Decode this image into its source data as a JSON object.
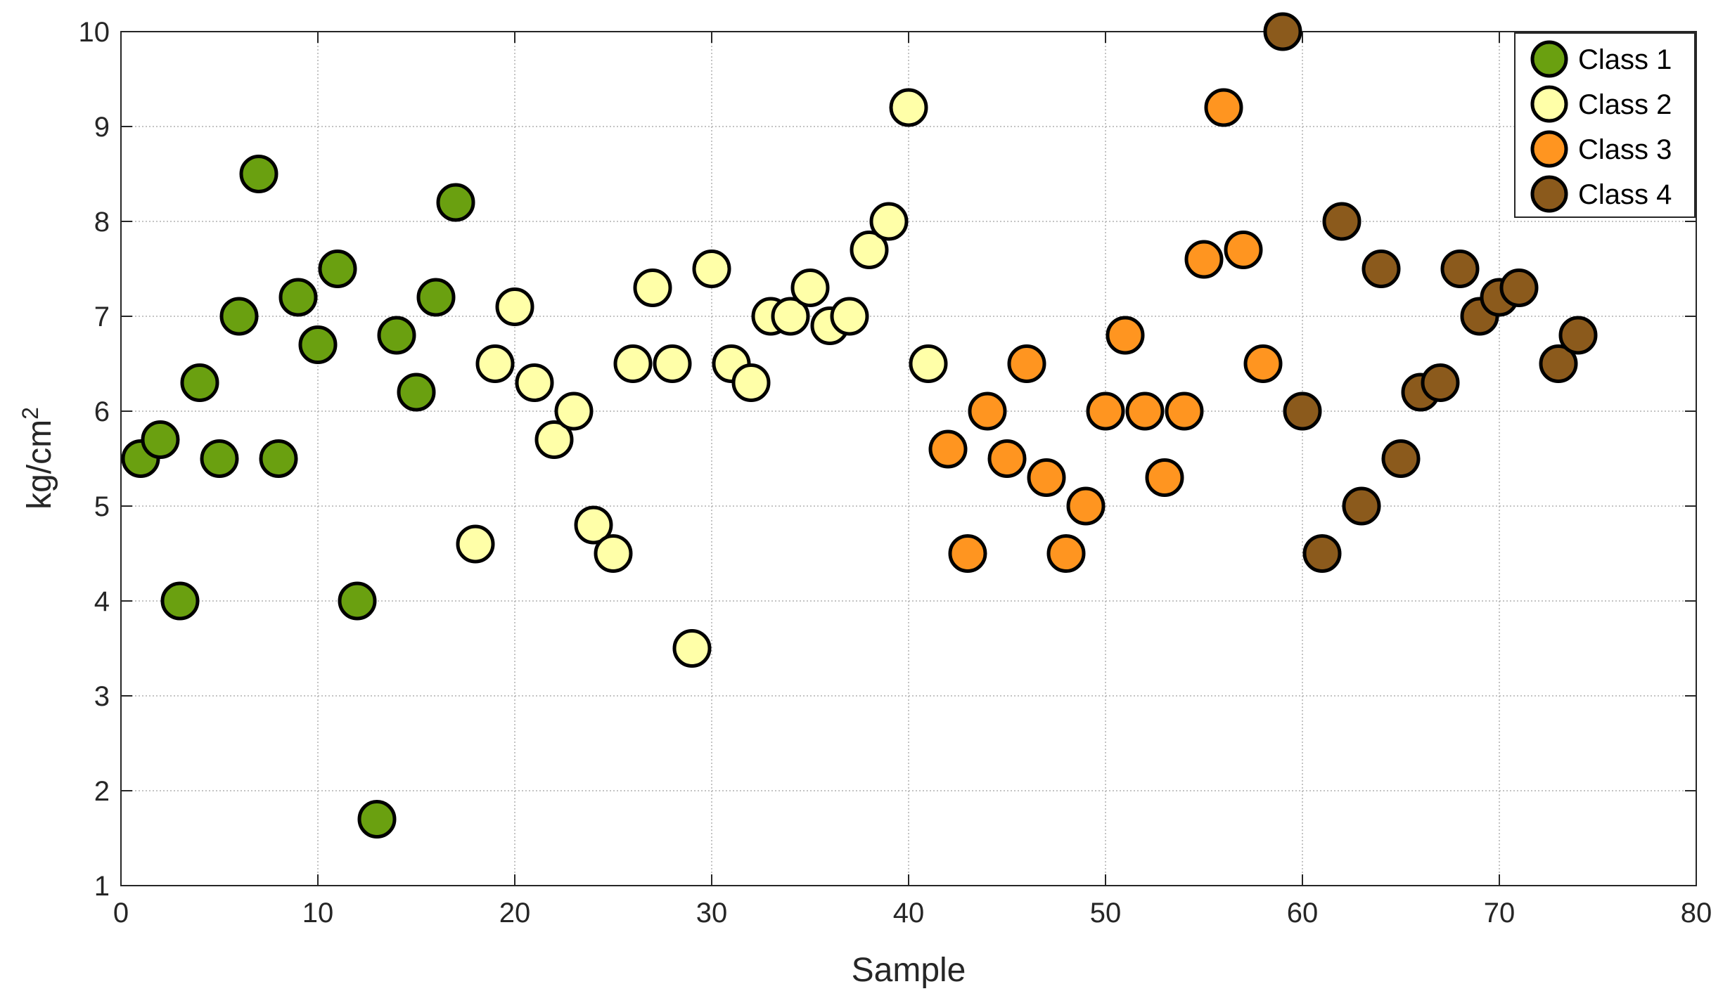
{
  "chart_data": {
    "type": "scatter",
    "title": "",
    "xlabel": "Sample",
    "ylabel": "kg/cm",
    "ylabel_superscript": "2",
    "xlim": [
      0,
      80
    ],
    "ylim": [
      1,
      10
    ],
    "x_ticks": [
      "0",
      "10",
      "20",
      "30",
      "40",
      "50",
      "60",
      "70",
      "80"
    ],
    "y_ticks": [
      "1",
      "2",
      "3",
      "4",
      "5",
      "6",
      "7",
      "8",
      "9",
      "10"
    ],
    "grid": true,
    "legend_position": "top-right",
    "series": [
      {
        "name": "Class 1",
        "color": "#6aa010",
        "x": [
          1,
          2,
          3,
          4,
          5,
          6,
          7,
          8,
          9,
          10,
          11,
          12,
          13,
          14,
          15,
          16,
          17
        ],
        "y": [
          5.5,
          5.7,
          4.0,
          6.3,
          5.5,
          7.0,
          8.5,
          5.5,
          7.2,
          6.7,
          7.5,
          4.0,
          1.7,
          6.8,
          6.2,
          7.2,
          8.2
        ]
      },
      {
        "name": "Class 2",
        "color": "#ffffa8",
        "x": [
          18,
          19,
          20,
          21,
          22,
          23,
          24,
          25,
          26,
          27,
          28,
          29,
          30,
          31,
          32,
          33,
          34,
          35,
          36,
          37,
          38,
          39,
          40,
          41
        ],
        "y": [
          4.6,
          6.5,
          7.1,
          6.3,
          5.7,
          6.0,
          4.8,
          4.5,
          6.5,
          7.3,
          6.5,
          3.5,
          7.5,
          6.5,
          6.3,
          7.0,
          7.0,
          7.3,
          6.9,
          7.0,
          7.7,
          8.0,
          9.2,
          6.5
        ]
      },
      {
        "name": "Class 3",
        "color": "#ff9520",
        "x": [
          42,
          43,
          44,
          45,
          46,
          47,
          48,
          49,
          50,
          51,
          52,
          53,
          54,
          55,
          56,
          57,
          58
        ],
        "y": [
          5.6,
          4.5,
          6.0,
          5.5,
          6.5,
          5.3,
          4.5,
          5.0,
          6.0,
          6.8,
          6.0,
          5.3,
          6.0,
          7.6,
          9.2,
          7.7,
          6.5
        ]
      },
      {
        "name": "Class 4",
        "color": "#8b5a1c",
        "x": [
          59,
          60,
          61,
          62,
          63,
          64,
          65,
          66,
          67,
          68,
          69,
          70,
          71,
          73,
          74
        ],
        "y": [
          10.0,
          6.0,
          4.5,
          8.0,
          5.0,
          7.5,
          5.5,
          6.2,
          6.3,
          7.5,
          7.0,
          7.2,
          7.3,
          6.5,
          6.8
        ]
      }
    ]
  }
}
